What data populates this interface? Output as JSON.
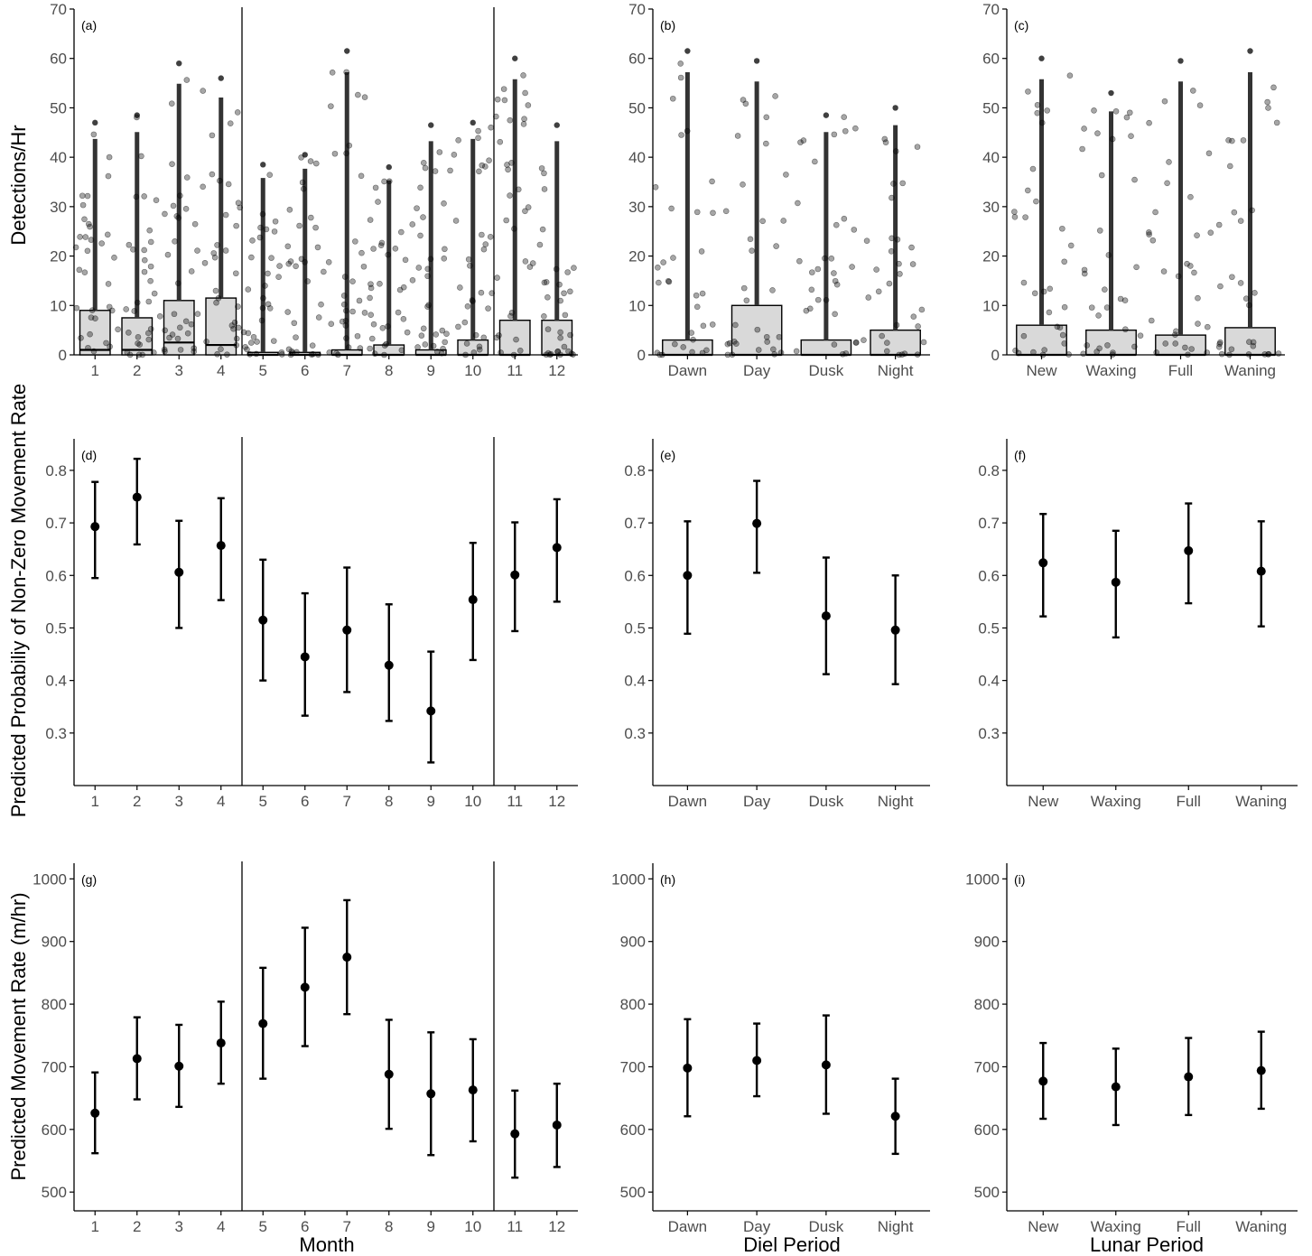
{
  "labels": {
    "ylabel_row1": "Detections/Hr",
    "ylabel_row2": "Predicted Probabiliy of Non-Zero Movement Rate",
    "ylabel_row3": "Predicted Movement Rate (m/hr)",
    "xlabel_col1": "Month",
    "xlabel_col2": "Diel Period",
    "xlabel_col3": "Lunar Period"
  },
  "colors": {
    "point": "#000000",
    "box_fill": "#d9d9d9",
    "axis": "#000000",
    "tick_text": "#4d4d4d"
  },
  "chart_data": [
    {
      "id": "a",
      "tag": "(a)",
      "type": "scatter",
      "overlay": "boxplot",
      "xlabel": "",
      "ylabel": "Detections/Hr",
      "ylim": [
        0,
        70
      ],
      "yticks": [
        0,
        10,
        20,
        30,
        40,
        50,
        60,
        70
      ],
      "categories": [
        "1",
        "2",
        "3",
        "4",
        "5",
        "6",
        "7",
        "8",
        "9",
        "10",
        "11",
        "12"
      ],
      "separators": [
        "4|5",
        "10|11"
      ],
      "boxes": [
        {
          "q1": 0,
          "median": 1,
          "q3": 9
        },
        {
          "q1": 0,
          "median": 1,
          "q3": 7.5
        },
        {
          "q1": 0,
          "median": 2.5,
          "q3": 11
        },
        {
          "q1": 0,
          "median": 2,
          "q3": 11.5
        },
        {
          "q1": 0,
          "median": 0,
          "q3": 0.5
        },
        {
          "q1": 0,
          "median": 0,
          "q3": 0.5
        },
        {
          "q1": 0,
          "median": 0,
          "q3": 1
        },
        {
          "q1": 0,
          "median": 0,
          "q3": 2
        },
        {
          "q1": 0,
          "median": 0,
          "q3": 1
        },
        {
          "q1": 0,
          "median": 0,
          "q3": 3
        },
        {
          "q1": 0,
          "median": 0,
          "q3": 7
        },
        {
          "q1": 0,
          "median": 0,
          "q3": 7
        }
      ],
      "max_values": [
        47,
        48.5,
        59,
        56,
        38.5,
        40.5,
        61.5,
        38,
        46.5,
        47,
        60,
        46.5
      ]
    },
    {
      "id": "b",
      "tag": "(b)",
      "type": "scatter",
      "overlay": "boxplot",
      "xlabel": "",
      "ylabel": "",
      "ylim": [
        0,
        70
      ],
      "yticks": [
        0,
        10,
        20,
        30,
        40,
        50,
        60,
        70
      ],
      "categories": [
        "Dawn",
        "Day",
        "Dusk",
        "Night"
      ],
      "separators": [],
      "boxes": [
        {
          "q1": 0,
          "median": 0,
          "q3": 3
        },
        {
          "q1": 0,
          "median": 0,
          "q3": 10
        },
        {
          "q1": 0,
          "median": 0,
          "q3": 3
        },
        {
          "q1": 0,
          "median": 0,
          "q3": 5
        }
      ],
      "max_values": [
        61.5,
        59.5,
        48.5,
        50
      ]
    },
    {
      "id": "c",
      "tag": "(c)",
      "type": "scatter",
      "overlay": "boxplot",
      "xlabel": "",
      "ylabel": "",
      "ylim": [
        0,
        70
      ],
      "yticks": [
        0,
        10,
        20,
        30,
        40,
        50,
        60,
        70
      ],
      "categories": [
        "New",
        "Waxing",
        "Full",
        "Waning"
      ],
      "separators": [],
      "boxes": [
        {
          "q1": 0,
          "median": 0,
          "q3": 6
        },
        {
          "q1": 0,
          "median": 0,
          "q3": 5
        },
        {
          "q1": 0,
          "median": 0,
          "q3": 4
        },
        {
          "q1": 0,
          "median": 0,
          "q3": 5.5
        }
      ],
      "max_values": [
        60,
        53,
        59.5,
        61.5
      ]
    },
    {
      "id": "d",
      "tag": "(d)",
      "type": "errorbar",
      "xlabel": "",
      "ylabel": "Predicted Probabiliy of Non-Zero Movement Rate",
      "ylim": [
        0.2,
        0.86
      ],
      "yticks": [
        0.3,
        0.4,
        0.5,
        0.6,
        0.7,
        0.8
      ],
      "categories": [
        "1",
        "2",
        "3",
        "4",
        "5",
        "6",
        "7",
        "8",
        "9",
        "10",
        "11",
        "12"
      ],
      "separators": [
        "4|5",
        "10|11"
      ],
      "values": [
        0.693,
        0.749,
        0.606,
        0.657,
        0.515,
        0.445,
        0.496,
        0.429,
        0.342,
        0.554,
        0.601,
        0.653
      ],
      "lower": [
        0.595,
        0.659,
        0.5,
        0.553,
        0.4,
        0.333,
        0.378,
        0.323,
        0.244,
        0.439,
        0.494,
        0.55
      ],
      "upper": [
        0.778,
        0.822,
        0.704,
        0.747,
        0.63,
        0.566,
        0.615,
        0.545,
        0.455,
        0.662,
        0.701,
        0.745
      ]
    },
    {
      "id": "e",
      "tag": "(e)",
      "type": "errorbar",
      "xlabel": "",
      "ylabel": "",
      "ylim": [
        0.2,
        0.86
      ],
      "yticks": [
        0.3,
        0.4,
        0.5,
        0.6,
        0.7,
        0.8
      ],
      "categories": [
        "Dawn",
        "Day",
        "Dusk",
        "Night"
      ],
      "separators": [],
      "values": [
        0.6,
        0.699,
        0.523,
        0.496
      ],
      "lower": [
        0.489,
        0.605,
        0.412,
        0.393
      ],
      "upper": [
        0.703,
        0.78,
        0.634,
        0.6
      ]
    },
    {
      "id": "f",
      "tag": "(f)",
      "type": "errorbar",
      "xlabel": "",
      "ylabel": "",
      "ylim": [
        0.2,
        0.86
      ],
      "yticks": [
        0.3,
        0.4,
        0.5,
        0.6,
        0.7,
        0.8
      ],
      "categories": [
        "New",
        "Waxing",
        "Full",
        "Waning"
      ],
      "separators": [],
      "values": [
        0.624,
        0.587,
        0.647,
        0.608
      ],
      "lower": [
        0.522,
        0.482,
        0.547,
        0.503
      ],
      "upper": [
        0.717,
        0.685,
        0.737,
        0.703
      ]
    },
    {
      "id": "g",
      "tag": "(g)",
      "type": "errorbar",
      "xlabel": "Month",
      "ylabel": "Predicted Movement Rate (m/hr)",
      "ylim": [
        470,
        1025
      ],
      "yticks": [
        500,
        600,
        700,
        800,
        900,
        1000
      ],
      "categories": [
        "1",
        "2",
        "3",
        "4",
        "5",
        "6",
        "7",
        "8",
        "9",
        "10",
        "11",
        "12"
      ],
      "separators": [
        "4|5",
        "10|11"
      ],
      "values": [
        626,
        713,
        701,
        738,
        769,
        827,
        875,
        688,
        657,
        663,
        593,
        607
      ],
      "lower": [
        562,
        648,
        636,
        673,
        681,
        733,
        784,
        601,
        559,
        581,
        523,
        540
      ],
      "upper": [
        691,
        779,
        767,
        804,
        858,
        922,
        966,
        775,
        755,
        744,
        662,
        673
      ]
    },
    {
      "id": "h",
      "tag": "(h)",
      "type": "errorbar",
      "xlabel": "Diel Period",
      "ylabel": "",
      "ylim": [
        470,
        1025
      ],
      "yticks": [
        500,
        600,
        700,
        800,
        900,
        1000
      ],
      "categories": [
        "Dawn",
        "Day",
        "Dusk",
        "Night"
      ],
      "separators": [],
      "values": [
        698,
        710,
        703,
        621
      ],
      "lower": [
        621,
        653,
        625,
        561
      ],
      "upper": [
        776,
        769,
        782,
        681
      ]
    },
    {
      "id": "i",
      "tag": "(i)",
      "type": "errorbar",
      "xlabel": "Lunar Period",
      "ylabel": "",
      "ylim": [
        470,
        1025
      ],
      "yticks": [
        500,
        600,
        700,
        800,
        900,
        1000
      ],
      "categories": [
        "New",
        "Waxing",
        "Full",
        "Waning"
      ],
      "separators": [],
      "values": [
        677,
        668,
        684,
        694
      ],
      "lower": [
        617,
        607,
        623,
        633
      ],
      "upper": [
        738,
        729,
        746,
        756
      ]
    }
  ]
}
